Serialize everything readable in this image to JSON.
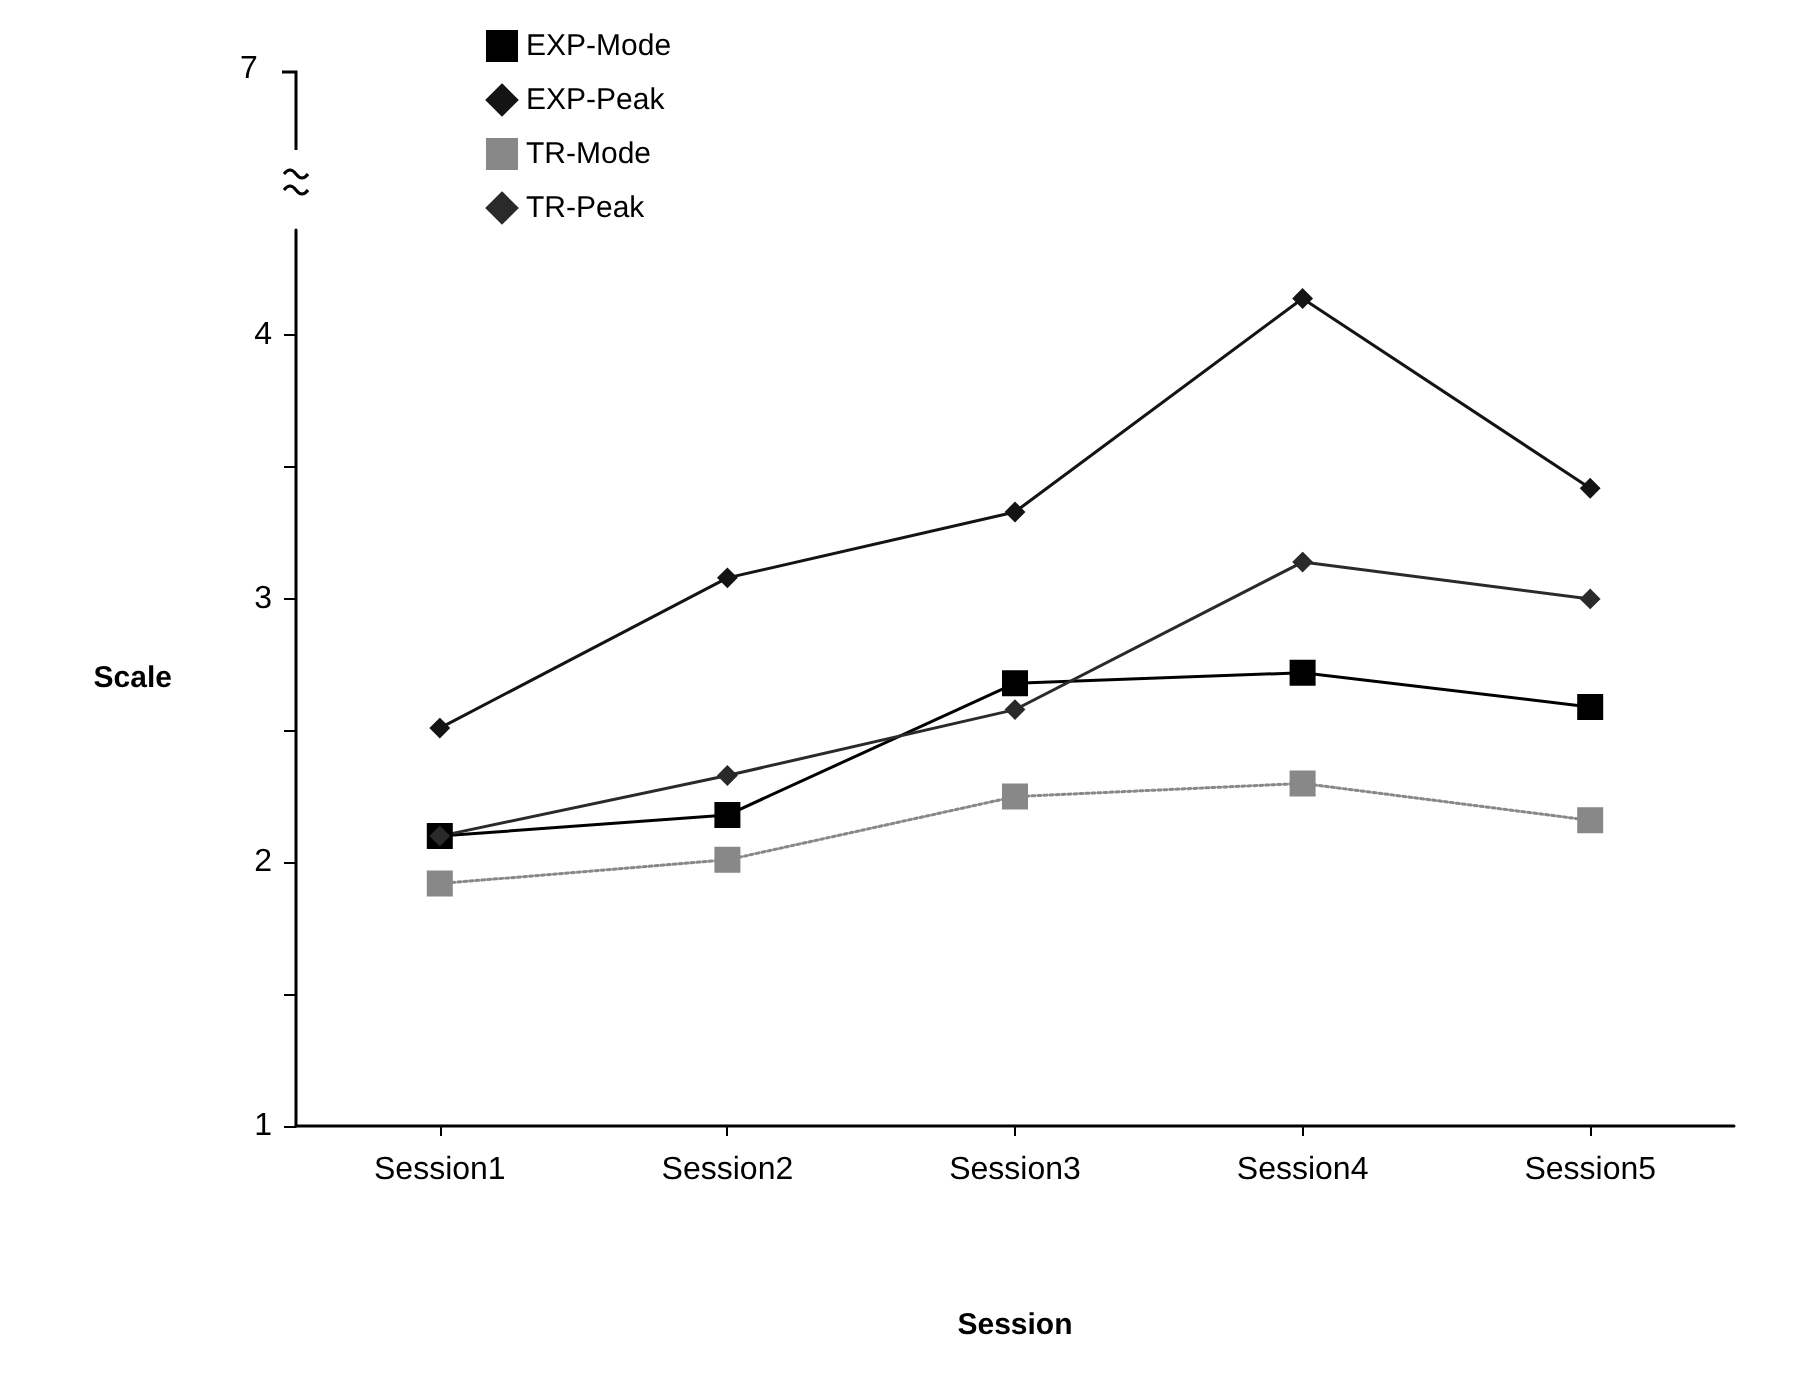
{
  "chart_data": {
    "type": "line",
    "xlabel": "Session",
    "ylabel": "Scale",
    "categories": [
      "Session1",
      "Session2",
      "Session3",
      "Session4",
      "Session5"
    ],
    "series": [
      {
        "name": "EXP-Mode",
        "color": "#000000",
        "marker": "square",
        "line_style": "solid",
        "values": [
          2.1,
          2.18,
          2.68,
          2.72,
          2.59
        ]
      },
      {
        "name": "EXP-Peak",
        "color": "#141414",
        "marker": "diamond",
        "line_style": "solid",
        "values": [
          2.51,
          3.08,
          3.33,
          4.14,
          3.42
        ]
      },
      {
        "name": "TR-Mode",
        "color": "#888888",
        "marker": "square",
        "line_style": "dotted",
        "values": [
          1.92,
          2.01,
          2.25,
          2.3,
          2.16
        ]
      },
      {
        "name": "TR-Peak",
        "color": "#2a2a2a",
        "marker": "diamond",
        "line_style": "solid",
        "values": [
          2.1,
          2.33,
          2.58,
          3.14,
          3.0
        ]
      }
    ],
    "ylim": [
      1,
      4.4
    ],
    "yticks": [
      1,
      {
        "value": 1.5,
        "label": null
      },
      2,
      {
        "value": 2.5,
        "label": null
      },
      3,
      {
        "value": 3.5,
        "label": null
      },
      4
    ],
    "annotations": [
      "7"
    ],
    "grid": false,
    "legend": "top left"
  }
}
